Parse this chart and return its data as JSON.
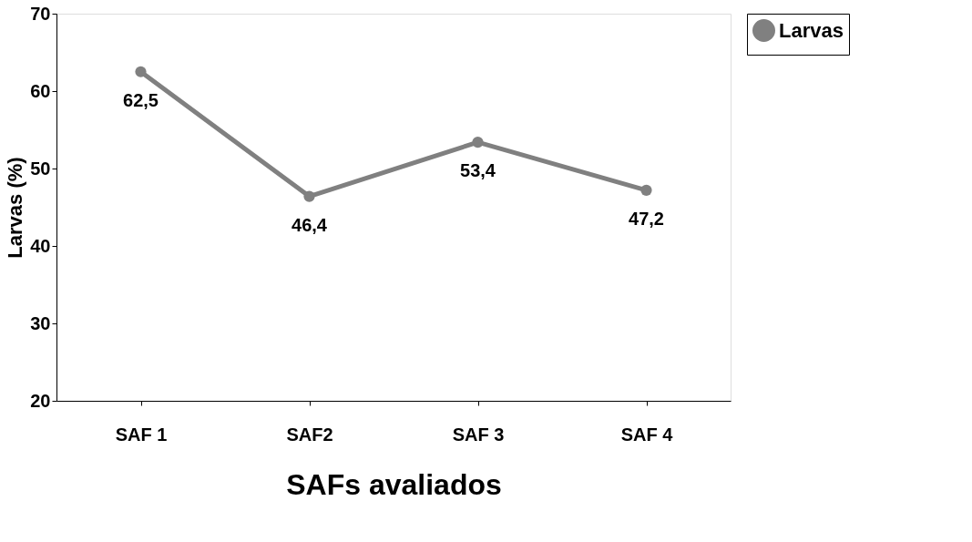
{
  "chart_data": {
    "type": "line",
    "xlabel": "SAFs avaliados",
    "ylabel": "Larvas (%)",
    "categories": [
      "SAF 1",
      "SAF2",
      "SAF 3",
      "SAF 4"
    ],
    "series": [
      {
        "name": "Larvas",
        "color": "#808080",
        "values": [
          62.5,
          46.4,
          53.4,
          47.2
        ],
        "value_labels": [
          "62,5",
          "46,4",
          "53,4",
          "47,2"
        ]
      }
    ],
    "ylim": [
      20,
      70
    ],
    "yticks": [
      20,
      30,
      40,
      50,
      60,
      70
    ],
    "grid": false,
    "legend": "right",
    "marker": "circle",
    "line_style": "solid"
  }
}
